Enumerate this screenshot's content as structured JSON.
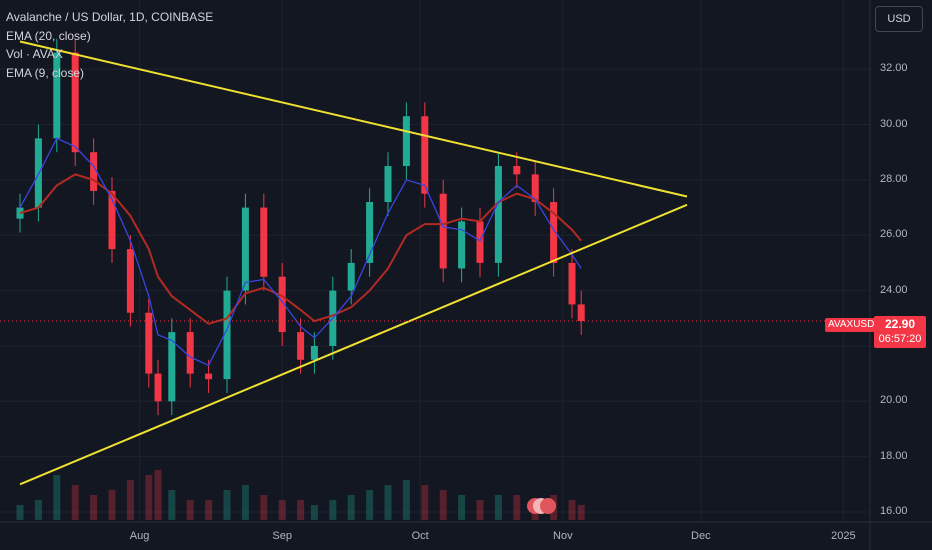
{
  "legend": {
    "title": "Avalanche / US Dollar, 1D, COINBASE",
    "ema20": "EMA (20, close)",
    "vol": "Vol · AVAX",
    "ema9": "EMA (9, close)"
  },
  "currency_button": "USD",
  "last_price": {
    "symbol": "AVAXUSD",
    "price": "22.90",
    "countdown": "06:57:20"
  },
  "colors": {
    "background": "#131722",
    "up": "#22ab94",
    "down": "#f23645",
    "trendline": "#f0e130",
    "ema20": "#b22a22",
    "ema9": "#3a45e0"
  },
  "chart_data": {
    "type": "candlestick",
    "title": "Avalanche / US Dollar, 1D, COINBASE",
    "y_ticks": [
      "32.00",
      "30.00",
      "28.00",
      "26.00",
      "24.00",
      "22.00",
      "20.00",
      "18.00",
      "16.00"
    ],
    "x_ticks": [
      "Aug",
      "Sep",
      "Oct",
      "Nov",
      "Dec",
      "2025"
    ],
    "ylim": [
      16,
      34.5
    ],
    "last_price": 22.9,
    "x": [
      "2024-07-06",
      "2024-07-10",
      "2024-07-14",
      "2024-07-18",
      "2024-07-22",
      "2024-07-26",
      "2024-07-30",
      "2024-08-03",
      "2024-08-05",
      "2024-08-08",
      "2024-08-12",
      "2024-08-16",
      "2024-08-20",
      "2024-08-24",
      "2024-08-28",
      "2024-09-01",
      "2024-09-05",
      "2024-09-08",
      "2024-09-12",
      "2024-09-16",
      "2024-09-20",
      "2024-09-24",
      "2024-09-28",
      "2024-10-02",
      "2024-10-06",
      "2024-10-10",
      "2024-10-14",
      "2024-10-18",
      "2024-10-22",
      "2024-10-26",
      "2024-10-30",
      "2024-11-03",
      "2024-11-05"
    ],
    "close": [
      27.0,
      29.5,
      32.6,
      29.0,
      27.6,
      25.5,
      23.2,
      21.0,
      20.0,
      22.5,
      21.0,
      20.8,
      24.0,
      27.0,
      24.5,
      22.5,
      21.5,
      22.0,
      24.0,
      25.0,
      27.2,
      28.5,
      30.3,
      27.5,
      24.8,
      26.5,
      25.0,
      28.5,
      28.2,
      27.2,
      25.0,
      23.5,
      22.9
    ],
    "series": [
      {
        "name": "EMA (20, close)",
        "values": [
          26.8,
          27.0,
          27.8,
          28.2,
          28.0,
          27.5,
          26.7,
          25.5,
          24.5,
          23.8,
          23.3,
          22.8,
          23.0,
          23.9,
          24.1,
          23.8,
          23.3,
          22.9,
          23.1,
          23.4,
          24.0,
          24.8,
          26.0,
          26.4,
          26.4,
          26.6,
          26.5,
          27.2,
          27.5,
          27.3,
          26.8,
          26.2,
          25.8
        ]
      },
      {
        "name": "EMA (9, close)",
        "values": [
          27.0,
          28.2,
          29.5,
          29.2,
          28.5,
          27.3,
          25.8,
          23.8,
          22.4,
          22.2,
          21.6,
          21.3,
          22.6,
          24.3,
          24.4,
          23.6,
          22.7,
          22.3,
          23.0,
          23.8,
          25.3,
          26.8,
          28.0,
          27.8,
          26.3,
          26.2,
          25.8,
          27.2,
          27.8,
          27.3,
          26.2,
          25.3,
          24.8
        ]
      }
    ],
    "trendlines": [
      {
        "from": [
          "2024-07-06",
          33.0
        ],
        "to": [
          "2024-11-28",
          27.4
        ]
      },
      {
        "from": [
          "2024-07-06",
          17.0
        ],
        "to": [
          "2024-11-28",
          27.1
        ]
      }
    ],
    "volume": [
      0.3,
      0.4,
      0.9,
      0.7,
      0.5,
      0.6,
      0.8,
      0.9,
      1.0,
      0.6,
      0.4,
      0.4,
      0.6,
      0.7,
      0.5,
      0.4,
      0.4,
      0.3,
      0.4,
      0.5,
      0.6,
      0.7,
      0.8,
      0.7,
      0.6,
      0.5,
      0.4,
      0.5,
      0.5,
      0.4,
      0.5,
      0.4,
      0.3
    ],
    "grid": true
  }
}
